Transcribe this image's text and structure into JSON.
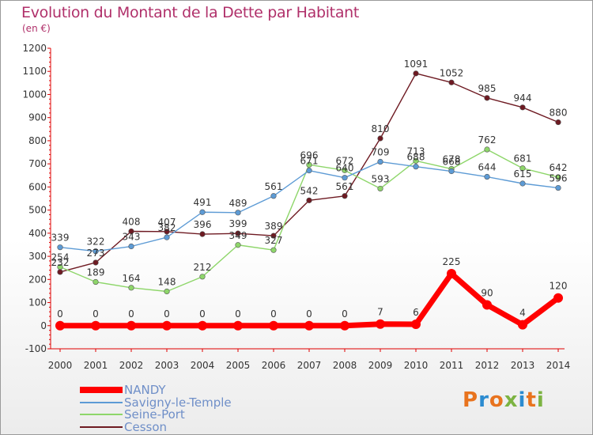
{
  "header": {
    "title": "Evolution du Montant de la Dette par Habitant",
    "subtitle": "(en €)"
  },
  "logo": {
    "text": "Proxiti",
    "colors": [
      "#e8731e",
      "#2b8bd0",
      "#e8731e",
      "#7cb342",
      "#2b8bd0",
      "#e8731e",
      "#7cb342"
    ]
  },
  "chart_data": {
    "type": "line",
    "x": [
      2000,
      2001,
      2002,
      2003,
      2004,
      2005,
      2006,
      2007,
      2008,
      2009,
      2010,
      2011,
      2012,
      2013,
      2014
    ],
    "ylim": [
      -100,
      1200
    ],
    "yticks": [
      -100,
      0,
      100,
      200,
      300,
      400,
      500,
      600,
      700,
      800,
      900,
      1000,
      1100,
      1200
    ],
    "grid": false,
    "legend": "bottom-left",
    "series": [
      {
        "name": "Cesson",
        "color": "#6e1a22",
        "values": [
          232,
          273,
          408,
          407,
          396,
          399,
          389,
          542,
          561,
          810,
          1091,
          1052,
          985,
          944,
          880
        ]
      },
      {
        "name": "Seine-Port",
        "color": "#8ed66a",
        "values": [
          254,
          189,
          164,
          148,
          212,
          349,
          327,
          696,
          672,
          593,
          713,
          678,
          762,
          681,
          642
        ]
      },
      {
        "name": "Savigny-le-Temple",
        "color": "#5d9bd5",
        "values": [
          339,
          322,
          343,
          382,
          491,
          489,
          561,
          671,
          640,
          709,
          688,
          668,
          644,
          615,
          596
        ]
      },
      {
        "name": "NANDY",
        "color": "#ff0000",
        "values": [
          0,
          0,
          0,
          0,
          0,
          0,
          0,
          0,
          0,
          7,
          6,
          225,
          90,
          4,
          120
        ]
      }
    ]
  }
}
